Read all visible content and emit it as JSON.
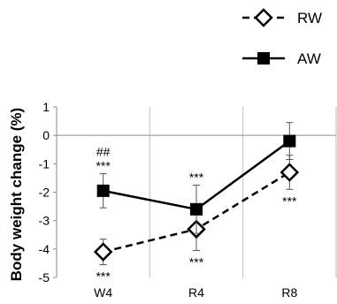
{
  "chart_data": {
    "type": "line",
    "title": "",
    "xlabel": "",
    "ylabel": "Body weight change (%)",
    "ylim": [
      -5,
      1
    ],
    "yticks": [
      1,
      0,
      -1,
      -2,
      -3,
      -4,
      -5
    ],
    "categories": [
      "W4",
      "R4",
      "R8"
    ],
    "grid": "vertical",
    "legend_position": "top-right",
    "series": [
      {
        "name": "RW",
        "values": [
          -4.1,
          -3.3,
          -1.3
        ],
        "error": [
          0.45,
          0.75,
          0.6
        ],
        "line_style": "dashed",
        "marker": "open-diamond",
        "annotations": [
          {
            "text": "***",
            "category_index": 0,
            "position": "below"
          },
          {
            "text": "***",
            "category_index": 1,
            "position": "below"
          },
          {
            "text": "***",
            "category_index": 2,
            "position": "below"
          }
        ]
      },
      {
        "name": "AW",
        "values": [
          -1.95,
          -2.6,
          -0.2
        ],
        "error": [
          0.6,
          0.85,
          0.65
        ],
        "line_style": "solid",
        "marker": "filled-square",
        "annotations": [
          {
            "text": "##",
            "category_index": 0,
            "position": "above",
            "level": 2
          },
          {
            "text": "***",
            "category_index": 0,
            "position": "above",
            "level": 1
          },
          {
            "text": "***",
            "category_index": 1,
            "position": "above",
            "level": 1
          }
        ]
      }
    ],
    "colors": {
      "line": "#000000",
      "grid": "#bfbfbf",
      "marker_fill_open": "#ffffff"
    }
  }
}
